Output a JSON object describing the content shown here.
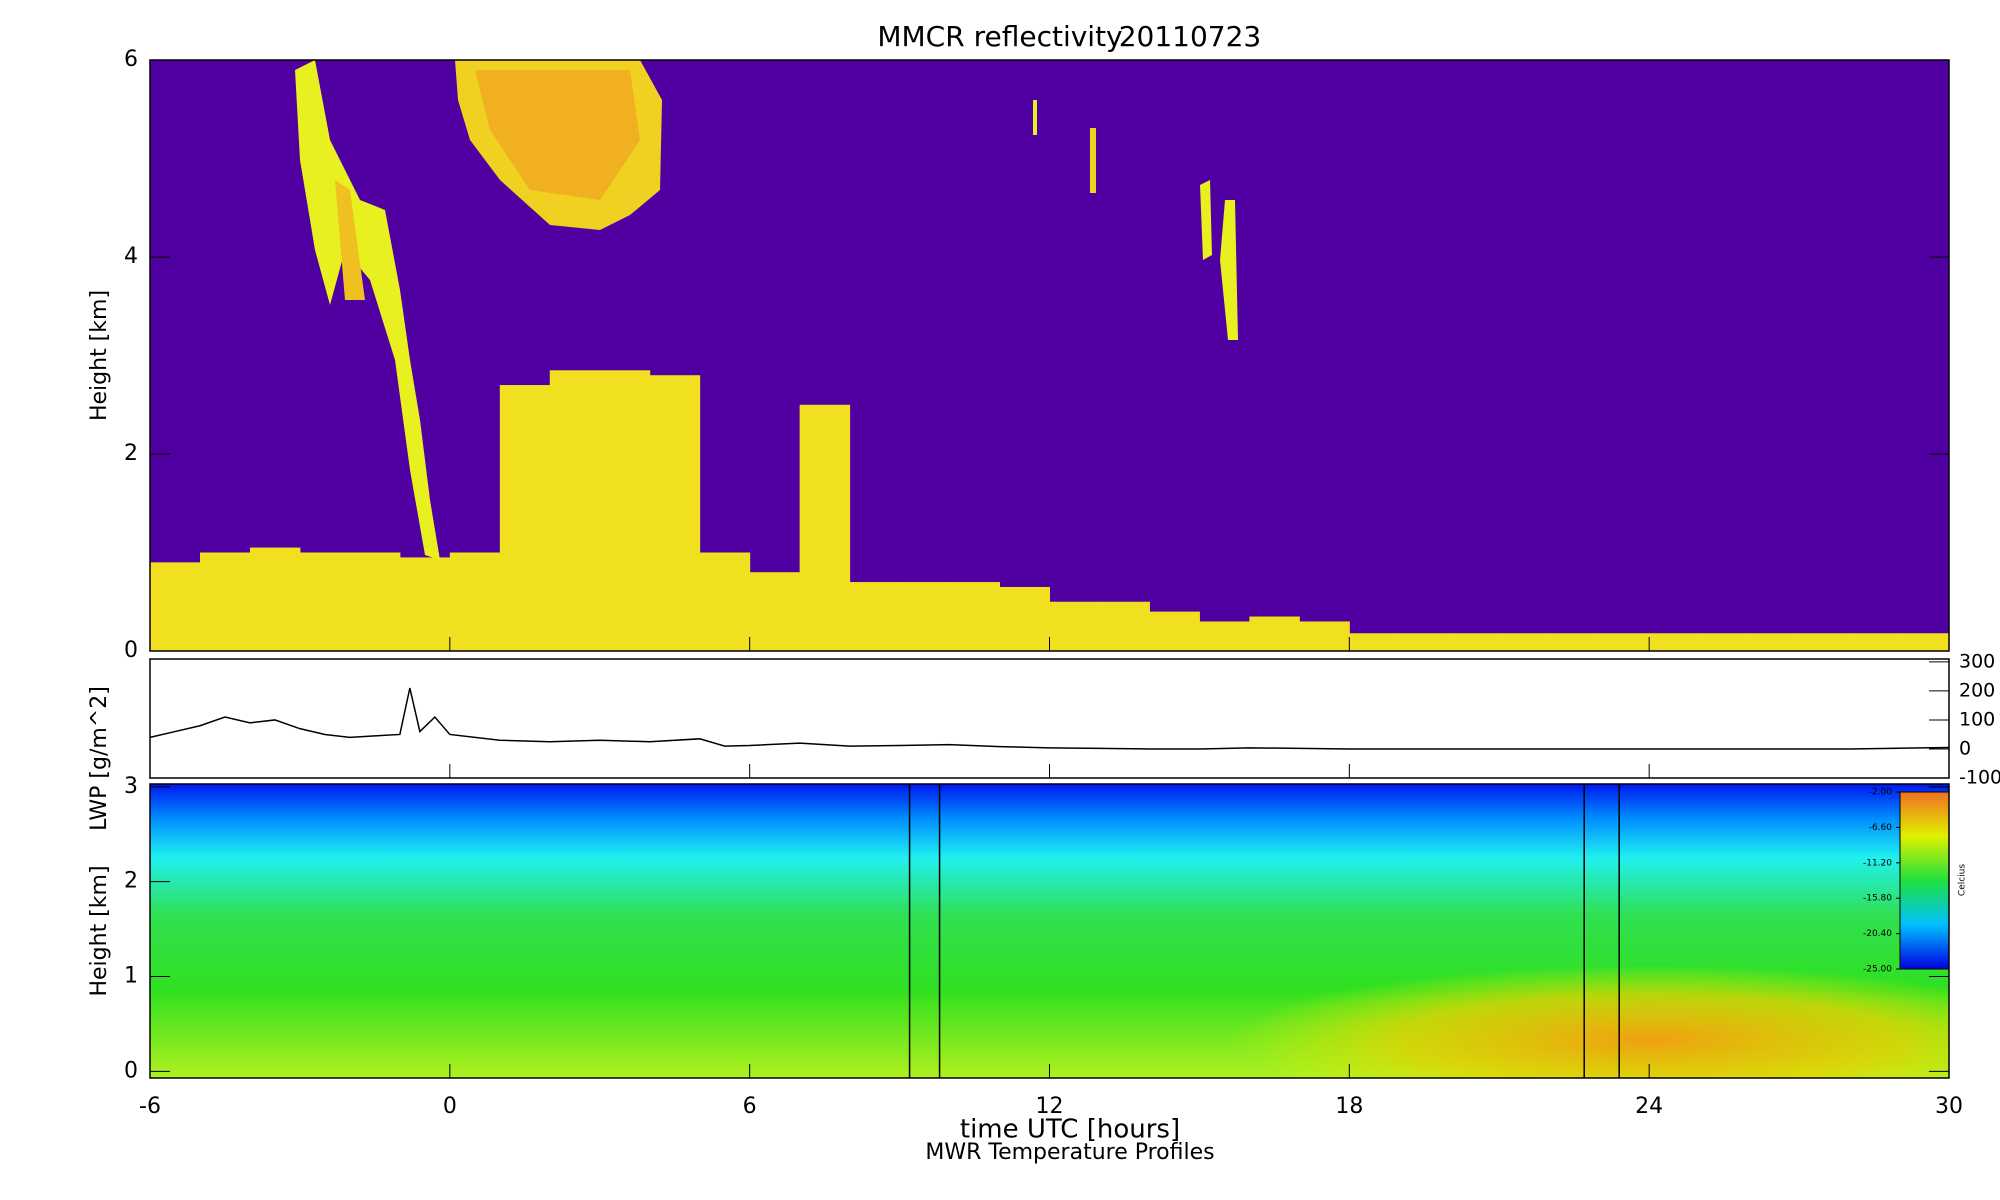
{
  "chart_data": [
    {
      "type": "cloud",
      "title": "MMCR reflectivity",
      "date": "20110723",
      "ylabel": "Height [km]",
      "xlim": [
        -6,
        30
      ],
      "ylim": [
        0,
        6
      ],
      "yticks": [
        0,
        2,
        4,
        6
      ],
      "background": "#5000a0",
      "color": "#f0e020",
      "x": [
        -6,
        -5,
        -4,
        -3,
        -2,
        -1,
        0,
        1,
        2,
        3,
        4,
        5,
        6,
        7,
        8,
        9,
        10,
        11,
        12,
        13,
        14,
        15,
        16,
        17,
        18,
        19,
        20,
        21,
        22,
        23,
        24,
        25,
        26,
        27,
        28,
        29
      ],
      "values": [
        0.9,
        1.0,
        1.05,
        1.0,
        1.0,
        0.95,
        1.0,
        2.7,
        2.85,
        2.85,
        2.8,
        1.0,
        0.8,
        2.5,
        0.7,
        0.7,
        0.7,
        0.65,
        0.5,
        0.5,
        0.4,
        0.3,
        0.35,
        0.3,
        0.18,
        0.18,
        0.18,
        0.18,
        0.18,
        0.18,
        0.18,
        0.18,
        0.18,
        0.18,
        0.18,
        0.18
      ]
    },
    {
      "type": "line",
      "ylabel": "LWP [g/m^2]",
      "xlim": [
        -6,
        30
      ],
      "ylim": [
        -100,
        310
      ],
      "yticks": [
        300,
        200,
        100,
        0,
        -100
      ],
      "color": "#000000",
      "x": [
        -6,
        -5.5,
        -5,
        -4.5,
        -4,
        -3.5,
        -3,
        -2.5,
        -2,
        -1.5,
        -1,
        -0.8,
        -0.6,
        -0.3,
        0,
        1,
        2,
        3,
        4,
        5,
        5.5,
        6,
        7,
        8,
        9,
        10,
        11,
        12,
        13,
        14,
        15,
        16,
        17,
        18,
        20,
        22,
        24,
        26,
        28,
        30
      ],
      "values": [
        40,
        60,
        80,
        110,
        90,
        100,
        70,
        50,
        40,
        45,
        50,
        210,
        60,
        110,
        50,
        30,
        25,
        30,
        25,
        35,
        10,
        12,
        20,
        10,
        12,
        15,
        8,
        4,
        2,
        0,
        0,
        4,
        2,
        0,
        0,
        0,
        0,
        0,
        0,
        5
      ]
    },
    {
      "type": "temperature",
      "subtitle": "MWR Temperature Profiles",
      "ylabel": "Height [km]",
      "xlabel": "time UTC [hours]",
      "xlim": [
        -6,
        30
      ],
      "ylim": [
        -0.07,
        3.03
      ],
      "yticks": [
        0,
        1,
        2,
        3
      ],
      "xticks": [
        -6,
        0,
        6,
        12,
        18,
        24,
        30
      ],
      "markers_x": [
        9.2,
        9.8,
        22.7,
        23.4
      ],
      "colorbar_label": "Celcius",
      "colorbar_ticks": [
        {
          "value": -2,
          "label": "-2.00"
        },
        {
          "value": -6.6,
          "label": "-6.60"
        },
        {
          "value": -11.2,
          "label": "-11.20"
        },
        {
          "value": -15.8,
          "label": "-15.80"
        },
        {
          "value": -20.4,
          "label": "-20.40"
        },
        {
          "value": -25,
          "label": "-25.00"
        }
      ],
      "colorbar_lim": [
        -25,
        -2
      ]
    }
  ]
}
